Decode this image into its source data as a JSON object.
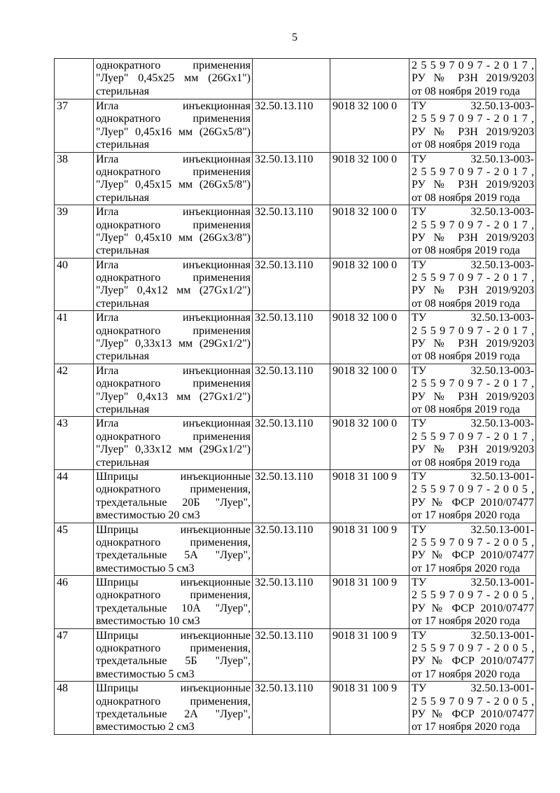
{
  "page_number": "5",
  "table": {
    "rows": [
      {
        "num": "",
        "desc": [
          "однократного применения",
          "\"Луер\" 0,45x25 мм (26Gx1\")",
          "стерильная"
        ],
        "okpd": "",
        "tnved": "",
        "reg": [
          "2 5 5 9 7 0 9 7 - 2 0 1 7 ,",
          "РУ № РЗН 2019/9203",
          "от 08 ноября 2019 года"
        ]
      },
      {
        "num": "37",
        "desc": [
          "Игла инъекционная",
          "однократного применения",
          "\"Луер\" 0,45x16 мм (26Gx5/8\")",
          "стерильная"
        ],
        "okpd": "32.50.13.110",
        "tnved": "9018 32 100 0",
        "reg": [
          "ТУ 32.50.13-003-",
          "2 5 5 9 7 0 9 7 - 2 0 1 7 ,",
          "РУ № РЗН 2019/9203",
          "от 08 ноября 2019 года"
        ]
      },
      {
        "num": "38",
        "desc": [
          "Игла инъекционная",
          "однократного применения",
          "\"Луер\" 0,45x15 мм (26Gx5/8\")",
          "стерильная"
        ],
        "okpd": "32.50.13.110",
        "tnved": "9018 32 100 0",
        "reg": [
          "ТУ 32.50.13-003-",
          "2 5 5 9 7 0 9 7 - 2 0 1 7 ,",
          "РУ № РЗН 2019/9203",
          "от 08 ноября 2019 года"
        ]
      },
      {
        "num": "39",
        "desc": [
          "Игла инъекционная",
          "однократного применения",
          "\"Луер\" 0,45x10 мм (26Gx3/8\")",
          "стерильная"
        ],
        "okpd": "32.50.13.110",
        "tnved": "9018 32 100 0",
        "reg": [
          "ТУ 32.50.13-003-",
          "2 5 5 9 7 0 9 7 - 2 0 1 7 ,",
          "РУ № РЗН 2019/9203",
          "от 08 ноября 2019 года"
        ]
      },
      {
        "num": "40",
        "desc": [
          "Игла инъекционная",
          "однократного применения",
          "\"Луер\" 0,4x12 мм (27Gx1/2\")",
          "стерильная"
        ],
        "okpd": "32.50.13.110",
        "tnved": "9018 32 100 0",
        "reg": [
          "ТУ 32.50.13-003-",
          "2 5 5 9 7 0 9 7 - 2 0 1 7 ,",
          "РУ № РЗН 2019/9203",
          "от 08 ноября 2019 года"
        ]
      },
      {
        "num": "41",
        "desc": [
          "Игла инъекционная",
          "однократного применения",
          "\"Луер\" 0,33x13 мм (29Gx1/2\")",
          "стерильная"
        ],
        "okpd": "32.50.13.110",
        "tnved": "9018 32 100 0",
        "reg": [
          "ТУ 32.50.13-003-",
          "2 5 5 9 7 0 9 7 - 2 0 1 7 ,",
          "РУ № РЗН 2019/9203",
          "от 08 ноября 2019 года"
        ]
      },
      {
        "num": "42",
        "desc": [
          "Игла инъекционная",
          "однократного применения",
          "\"Луер\" 0,4x13 мм (27Gx1/2\")",
          "стерильная"
        ],
        "okpd": "32.50.13.110",
        "tnved": "9018 32 100 0",
        "reg": [
          "ТУ 32.50.13-003-",
          "2 5 5 9 7 0 9 7 - 2 0 1 7 ,",
          "РУ № РЗН 2019/9203",
          "от 08 ноября 2019 года"
        ]
      },
      {
        "num": "43",
        "desc": [
          "Игла инъекционная",
          "однократного применения",
          "\"Луер\" 0,33x12 мм (29Gx1/2\")",
          "стерильная"
        ],
        "okpd": "32.50.13.110",
        "tnved": "9018 32 100 0",
        "reg": [
          "ТУ 32.50.13-003-",
          "2 5 5 9 7 0 9 7 - 2 0 1 7 ,",
          "РУ № РЗН 2019/9203",
          "от 08 ноября 2019 года"
        ]
      },
      {
        "num": "44",
        "desc": [
          "Шприцы инъекционные",
          "однократного применения,",
          "трехдетальные 20Б \"Луер\",",
          "вместимостью 20 см3"
        ],
        "okpd": "32.50.13.110",
        "tnved": "9018 31 100 9",
        "reg": [
          "ТУ 32.50.13-001-",
          "2 5 5 9 7 0 9 7 - 2 0 0 5 ,",
          "РУ № ФСР 2010/07477",
          "от 17 ноября 2020 года"
        ]
      },
      {
        "num": "45",
        "desc": [
          "Шприцы инъекционные",
          "однократного применения,",
          "трехдетальные 5А \"Луер\",",
          "вместимостью 5 см3"
        ],
        "okpd": "32.50.13.110",
        "tnved": "9018 31 100 9",
        "reg": [
          "ТУ 32.50.13-001-",
          "2 5 5 9 7 0 9 7 - 2 0 0 5 ,",
          "РУ № ФСР 2010/07477",
          "от 17 ноября 2020 года"
        ]
      },
      {
        "num": "46",
        "desc": [
          "Шприцы инъекционные",
          "однократного применения,",
          "трехдетальные 10А \"Луер\",",
          "вместимостью 10 см3"
        ],
        "okpd": "32.50.13.110",
        "tnved": "9018 31 100 9",
        "reg": [
          "ТУ 32.50.13-001-",
          "2 5 5 9 7 0 9 7 - 2 0 0 5 ,",
          "РУ № ФСР 2010/07477",
          "от 17 ноября 2020 года"
        ]
      },
      {
        "num": "47",
        "desc": [
          "Шприцы инъекционные",
          "однократного применения,",
          "трехдетальные 5Б \"Луер\",",
          "вместимостью 5 см3"
        ],
        "okpd": "32.50.13.110",
        "tnved": "9018 31 100 9",
        "reg": [
          "ТУ 32.50.13-001-",
          "2 5 5 9 7 0 9 7 - 2 0 0 5 ,",
          "РУ № ФСР 2010/07477",
          "от 17 ноября 2020 года"
        ]
      },
      {
        "num": "48",
        "desc": [
          "Шприцы инъекционные",
          "однократного применения,",
          "трехдетальные 2А \"Луер\",",
          "вместимостью 2 см3"
        ],
        "okpd": "32.50.13.110",
        "tnved": "9018 31 100 9",
        "reg": [
          "ТУ 32.50.13-001-",
          "2 5 5 9 7 0 9 7 - 2 0 0 5 ,",
          "РУ № ФСР 2010/07477",
          "от 17 ноября 2020 года"
        ]
      }
    ]
  }
}
